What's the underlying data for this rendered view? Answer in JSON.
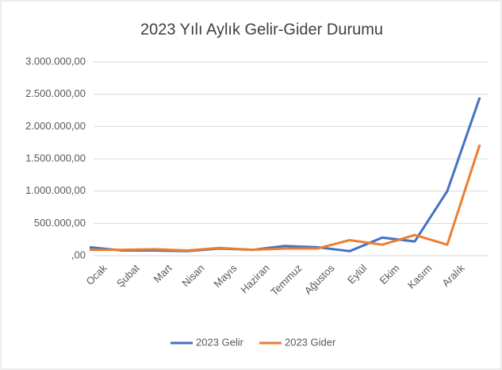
{
  "chart_data": {
    "type": "line",
    "title": "2023 Yılı Aylık Gelir-Gider Durumu",
    "categories": [
      "Ocak",
      "Şubat",
      "Mart",
      "Nisan",
      "Mayıs",
      "Haziran",
      "Temmuz",
      "Ağustos",
      "Eylül",
      "Ekim",
      "Kasım",
      "Aralık",
      null
    ],
    "series": [
      {
        "name": "2023 Gelir",
        "color": "#4472c4",
        "values": [
          130000,
          80000,
          80000,
          70000,
          110000,
          90000,
          150000,
          130000,
          70000,
          280000,
          220000,
          1000000,
          2450000
        ]
      },
      {
        "name": "2023 Gider",
        "color": "#ed7d31",
        "values": [
          90000,
          90000,
          100000,
          80000,
          120000,
          90000,
          110000,
          110000,
          240000,
          170000,
          320000,
          170000,
          1720000
        ]
      }
    ],
    "ylim": [
      0,
      3000000
    ],
    "yticks": [
      {
        "value": 0,
        "label": ",00"
      },
      {
        "value": 500000,
        "label": "500.000,00"
      },
      {
        "value": 1000000,
        "label": "1.000.000,00"
      },
      {
        "value": 1500000,
        "label": "1.500.000,00"
      },
      {
        "value": 2000000,
        "label": "2.000.000,00"
      },
      {
        "value": 2500000,
        "label": "2.500.000,00"
      },
      {
        "value": 3000000,
        "label": "3.000.000,00"
      }
    ],
    "grid": true,
    "legend": "bottom"
  }
}
